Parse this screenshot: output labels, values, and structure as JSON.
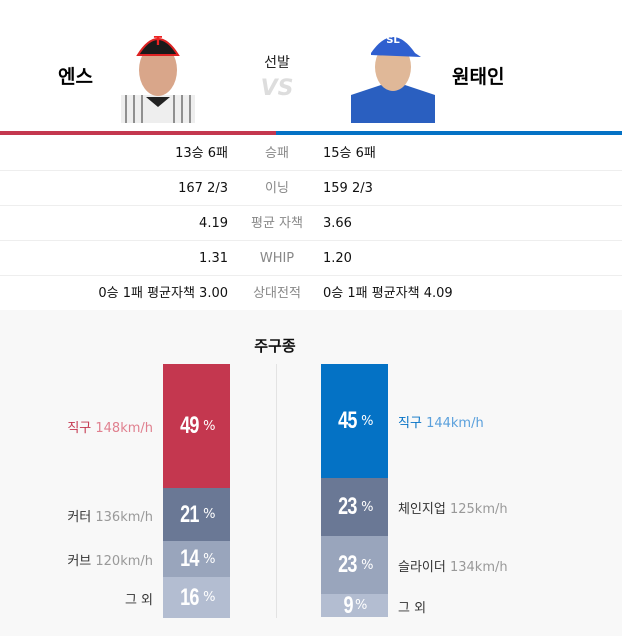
{
  "header": {
    "center_label": "선발",
    "vs": "VS"
  },
  "away": {
    "name": "엔스",
    "color": "#c4374f"
  },
  "home": {
    "name": "원태인",
    "color": "#0472c5"
  },
  "stats": [
    {
      "label": "승패",
      "away": "13승 6패",
      "home": "15승 6패"
    },
    {
      "label": "이닝",
      "away": "167 2/3",
      "home": "159 2/3"
    },
    {
      "label": "평균 자책",
      "away": "4.19",
      "home": "3.66"
    },
    {
      "label": "WHIP",
      "away": "1.31",
      "home": "1.20"
    },
    {
      "label": "상대전적",
      "away": "0승 1패 평균자책 3.00",
      "home": "0승 1패 평균자책 4.09"
    }
  ],
  "pitches_title": "주구종",
  "away_pitches": [
    {
      "name": "직구",
      "speed": "148km/h",
      "pct": "49",
      "unit": "%"
    },
    {
      "name": "커터",
      "speed": "136km/h",
      "pct": "21",
      "unit": "%"
    },
    {
      "name": "커브",
      "speed": "120km/h",
      "pct": "14",
      "unit": "%"
    },
    {
      "name": "그 외",
      "speed": "",
      "pct": "16",
      "unit": "%"
    }
  ],
  "home_pitches": [
    {
      "name": "직구",
      "speed": "144km/h",
      "pct": "45",
      "unit": "%"
    },
    {
      "name": "체인지업",
      "speed": "125km/h",
      "pct": "23",
      "unit": "%"
    },
    {
      "name": "슬라이더",
      "speed": "134km/h",
      "pct": "23",
      "unit": "%"
    },
    {
      "name": "그 외",
      "speed": "",
      "pct": "9",
      "unit": "%"
    }
  ]
}
